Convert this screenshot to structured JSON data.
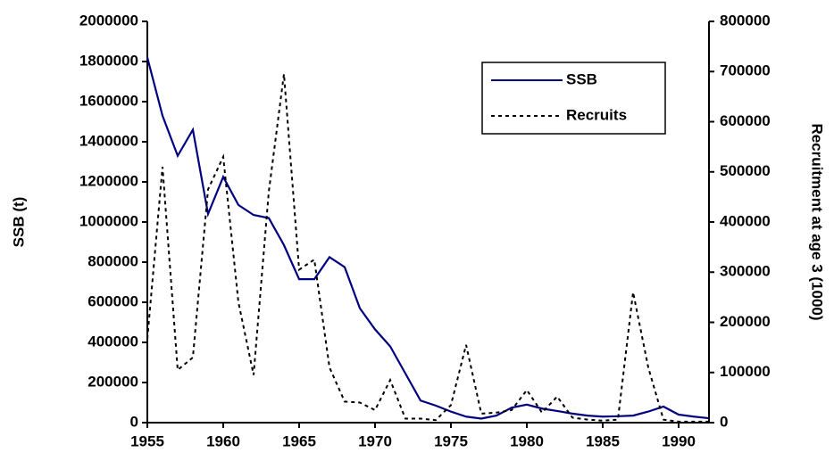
{
  "chart_data": {
    "type": "line",
    "x": [
      1955,
      1956,
      1957,
      1958,
      1959,
      1960,
      1961,
      1962,
      1963,
      1964,
      1965,
      1966,
      1967,
      1968,
      1969,
      1970,
      1971,
      1972,
      1973,
      1974,
      1975,
      1976,
      1977,
      1978,
      1979,
      1980,
      1981,
      1982,
      1983,
      1984,
      1985,
      1986,
      1987,
      1988,
      1989,
      1990,
      1991,
      1992
    ],
    "series": [
      {
        "name": "SSB",
        "color": "#000080",
        "style": "solid",
        "values": [
          1820000,
          1530000,
          1330000,
          1460000,
          1040000,
          1225000,
          1085000,
          1035000,
          1020000,
          885000,
          715000,
          715000,
          825000,
          775000,
          570000,
          465000,
          380000,
          245000,
          110000,
          85000,
          55000,
          30000,
          20000,
          35000,
          75000,
          90000,
          70000,
          58000,
          45000,
          35000,
          30000,
          32000,
          35000,
          55000,
          80000,
          40000,
          30000,
          22000
        ]
      },
      {
        "name": "Recruits",
        "color": "#000000",
        "style": "dashed",
        "axis": "y2",
        "values": [
          167000,
          510000,
          105000,
          130000,
          465000,
          530000,
          240000,
          95000,
          460000,
          695000,
          305000,
          325000,
          110000,
          42000,
          40000,
          25000,
          85000,
          8000,
          8000,
          5000,
          35000,
          155000,
          18000,
          20000,
          25000,
          65000,
          20000,
          52000,
          10000,
          6000,
          4000,
          6000,
          260000,
          110000,
          6000,
          2000,
          2000,
          2000
        ]
      }
    ],
    "ylabel": "SSB (t)",
    "y2label": "Recruitment at age 3 (1000)",
    "xlim": [
      1955,
      1992
    ],
    "xticks": [
      1955,
      1960,
      1965,
      1970,
      1975,
      1980,
      1985,
      1990
    ],
    "ylim": [
      0,
      2000000
    ],
    "yticks": [
      0,
      200000,
      400000,
      600000,
      800000,
      1000000,
      1200000,
      1400000,
      1600000,
      1800000,
      2000000
    ],
    "y2lim": [
      0,
      800000
    ],
    "y2ticks": [
      0,
      100000,
      200000,
      300000,
      400000,
      500000,
      600000,
      700000,
      800000
    ],
    "legend": "upper right"
  }
}
